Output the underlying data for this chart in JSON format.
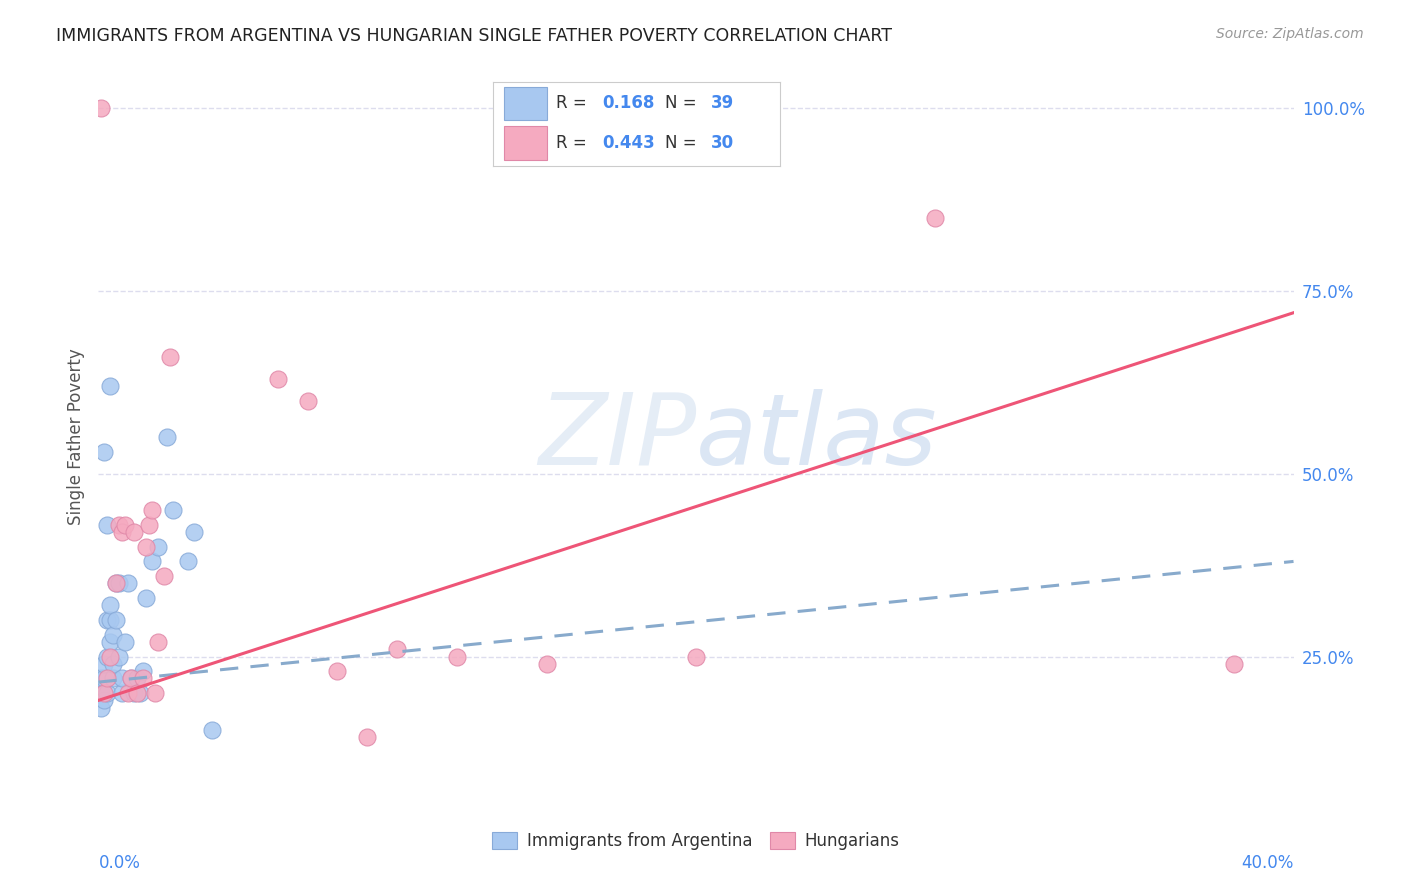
{
  "title": "IMMIGRANTS FROM ARGENTINA VS HUNGARIAN SINGLE FATHER POVERTY CORRELATION CHART",
  "source": "Source: ZipAtlas.com",
  "ylabel": "Single Father Poverty",
  "xlim": [
    0.0,
    0.4
  ],
  "ylim": [
    0.05,
    1.05
  ],
  "blue_color": "#a8c8f0",
  "pink_color": "#f5aac0",
  "blue_edge_color": "#88aad8",
  "pink_edge_color": "#e088a8",
  "blue_line_color": "#88aacc",
  "pink_line_color": "#ee5577",
  "number_color": "#4488ee",
  "text_color": "#333333",
  "bg_color": "#ffffff",
  "grid_color": "#ddddee",
  "watermark_color": "#c8d8f0",
  "title_color": "#222222",
  "source_color": "#999999",
  "ylabel_color": "#555555",
  "ytick_vals": [
    0.25,
    0.5,
    0.75,
    1.0
  ],
  "ytick_labels": [
    "25.0%",
    "50.0%",
    "75.0%",
    "100.0%"
  ],
  "xtick_left": "0.0%",
  "xtick_right": "40.0%",
  "blue_x": [
    0.001,
    0.001,
    0.001,
    0.002,
    0.002,
    0.002,
    0.003,
    0.003,
    0.003,
    0.004,
    0.004,
    0.004,
    0.005,
    0.005,
    0.005,
    0.006,
    0.006,
    0.007,
    0.007,
    0.008,
    0.008,
    0.009,
    0.01,
    0.011,
    0.012,
    0.013,
    0.014,
    0.015,
    0.016,
    0.018,
    0.02,
    0.023,
    0.025,
    0.03,
    0.032,
    0.038,
    0.002,
    0.003,
    0.004
  ],
  "blue_y": [
    0.2,
    0.22,
    0.18,
    0.22,
    0.24,
    0.19,
    0.2,
    0.25,
    0.3,
    0.27,
    0.3,
    0.32,
    0.22,
    0.24,
    0.28,
    0.3,
    0.35,
    0.25,
    0.35,
    0.2,
    0.22,
    0.27,
    0.35,
    0.22,
    0.2,
    0.22,
    0.2,
    0.23,
    0.33,
    0.38,
    0.4,
    0.55,
    0.45,
    0.38,
    0.42,
    0.15,
    0.53,
    0.43,
    0.62
  ],
  "pink_x": [
    0.002,
    0.003,
    0.004,
    0.006,
    0.007,
    0.008,
    0.009,
    0.01,
    0.011,
    0.012,
    0.013,
    0.015,
    0.016,
    0.017,
    0.018,
    0.019,
    0.02,
    0.022,
    0.024,
    0.06,
    0.07,
    0.08,
    0.09,
    0.1,
    0.12,
    0.15,
    0.2,
    0.28,
    0.38,
    0.001
  ],
  "pink_y": [
    0.2,
    0.22,
    0.25,
    0.35,
    0.43,
    0.42,
    0.43,
    0.2,
    0.22,
    0.42,
    0.2,
    0.22,
    0.4,
    0.43,
    0.45,
    0.2,
    0.27,
    0.36,
    0.66,
    0.63,
    0.6,
    0.23,
    0.14,
    0.26,
    0.25,
    0.24,
    0.25,
    0.85,
    0.24,
    1.0
  ],
  "blue_trend_x0": 0.0,
  "blue_trend_y0": 0.215,
  "blue_trend_x1": 0.4,
  "blue_trend_y1": 0.38,
  "pink_trend_x0": 0.0,
  "pink_trend_y0": 0.19,
  "pink_trend_x1": 0.4,
  "pink_trend_y1": 0.72
}
